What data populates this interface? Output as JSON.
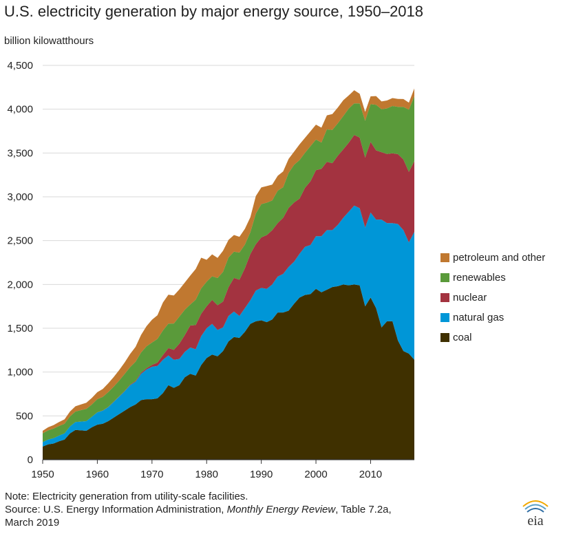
{
  "chart_data": {
    "type": "area",
    "stacked": true,
    "title": "U.S. electricity generation by major energy source, 1950–2018",
    "ylabel": "billion kilowatthours",
    "xlabel": "",
    "xlim": [
      1950,
      2018
    ],
    "ylim": [
      0,
      4500
    ],
    "x_ticks": [
      "1950",
      "1960",
      "1970",
      "1980",
      "1990",
      "2000",
      "2010"
    ],
    "y_ticks": [
      "0",
      "500",
      "1,000",
      "1,500",
      "2,000",
      "2,500",
      "3,000",
      "3,500",
      "4,000",
      "4,500"
    ],
    "grid": true,
    "legend_position": "right",
    "x": [
      1950,
      1951,
      1952,
      1953,
      1954,
      1955,
      1956,
      1957,
      1958,
      1959,
      1960,
      1961,
      1962,
      1963,
      1964,
      1965,
      1966,
      1967,
      1968,
      1969,
      1970,
      1971,
      1972,
      1973,
      1974,
      1975,
      1976,
      1977,
      1978,
      1979,
      1980,
      1981,
      1982,
      1983,
      1984,
      1985,
      1986,
      1987,
      1988,
      1989,
      1990,
      1991,
      1992,
      1993,
      1994,
      1995,
      1996,
      1997,
      1998,
      1999,
      2000,
      2001,
      2002,
      2003,
      2004,
      2005,
      2006,
      2007,
      2008,
      2009,
      2010,
      2011,
      2012,
      2013,
      2014,
      2015,
      2016,
      2017,
      2018
    ],
    "series": [
      {
        "name": "coal",
        "color": "#3f3000",
        "values": [
          150,
          175,
          185,
          210,
          230,
          300,
          340,
          335,
          330,
          370,
          400,
          410,
          440,
          480,
          520,
          560,
          600,
          630,
          680,
          690,
          690,
          700,
          760,
          850,
          820,
          850,
          940,
          980,
          960,
          1080,
          1160,
          1200,
          1180,
          1240,
          1350,
          1400,
          1390,
          1460,
          1550,
          1580,
          1590,
          1570,
          1600,
          1680,
          1680,
          1700,
          1780,
          1850,
          1880,
          1890,
          1950,
          1910,
          1940,
          1970,
          1980,
          2000,
          1990,
          2000,
          1990,
          1750,
          1850,
          1730,
          1510,
          1580,
          1580,
          1360,
          1240,
          1210,
          1140
        ]
      },
      {
        "name": "natural gas",
        "color": "#0096d7",
        "values": [
          50,
          55,
          60,
          65,
          70,
          80,
          90,
          100,
          110,
          120,
          140,
          150,
          160,
          180,
          200,
          220,
          250,
          260,
          300,
          340,
          370,
          370,
          380,
          340,
          320,
          300,
          290,
          300,
          300,
          330,
          340,
          350,
          300,
          270,
          290,
          290,
          250,
          270,
          270,
          350,
          370,
          380,
          400,
          410,
          440,
          500,
          480,
          500,
          550,
          560,
          600,
          640,
          680,
          650,
          700,
          760,
          840,
          900,
          880,
          900,
          970,
          1010,
          1230,
          1120,
          1120,
          1330,
          1380,
          1270,
          1460
        ]
      },
      {
        "name": "nuclear",
        "color": "#a33340",
        "values": [
          0,
          0,
          0,
          0,
          0,
          0,
          0,
          0,
          0,
          0,
          1,
          2,
          2,
          3,
          3,
          4,
          6,
          8,
          13,
          14,
          22,
          38,
          54,
          83,
          114,
          173,
          191,
          251,
          276,
          255,
          251,
          273,
          283,
          294,
          328,
          384,
          414,
          455,
          527,
          529,
          577,
          613,
          619,
          610,
          640,
          673,
          675,
          629,
          673,
          728,
          754,
          769,
          780,
          764,
          789,
          782,
          787,
          806,
          806,
          799,
          807,
          790,
          769,
          789,
          797,
          797,
          806,
          805,
          807
        ]
      },
      {
        "name": "renewables",
        "color": "#5a9a3a",
        "values": [
          100,
          105,
          110,
          110,
          110,
          115,
          120,
          130,
          140,
          140,
          150,
          155,
          170,
          170,
          180,
          195,
          200,
          220,
          230,
          250,
          255,
          270,
          280,
          280,
          300,
          310,
          290,
          240,
          290,
          290,
          280,
          270,
          310,
          340,
          340,
          300,
          310,
          270,
          250,
          350,
          380,
          370,
          340,
          370,
          350,
          400,
          430,
          440,
          400,
          400,
          350,
          300,
          370,
          380,
          370,
          380,
          390,
          360,
          390,
          420,
          430,
          520,
          490,
          520,
          540,
          540,
          600,
          710,
          740
        ]
      },
      {
        "name": "petroleum and other",
        "color": "#c07830",
        "values": [
          30,
          35,
          40,
          45,
          50,
          55,
          60,
          65,
          70,
          75,
          80,
          90,
          100,
          110,
          120,
          130,
          150,
          170,
          200,
          230,
          260,
          270,
          320,
          330,
          320,
          310,
          310,
          330,
          350,
          350,
          250,
          250,
          230,
          240,
          200,
          190,
          180,
          180,
          170,
          200,
          190,
          190,
          180,
          170,
          180,
          160,
          150,
          180,
          170,
          170,
          170,
          170,
          160,
          180,
          180,
          180,
          150,
          150,
          110,
          100,
          90,
          100,
          90,
          90,
          90,
          90,
          90,
          80,
          90
        ]
      }
    ]
  },
  "notes": {
    "line1": "Note: Electricity generation from utility-scale facilities.",
    "line2_pre": "Source: U.S. Energy Information Administration, ",
    "line2_italic": "Monthly Energy Review",
    "line2_post": ", Table 7.2a,",
    "line3": "March 2019"
  },
  "logo": {
    "text": "eia"
  }
}
